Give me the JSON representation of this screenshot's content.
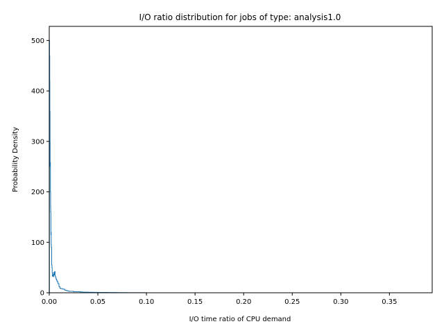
{
  "chart_data": {
    "type": "line",
    "title": "I/O ratio distribution for jobs of type: analysis1.0",
    "xlabel": "I/O time ratio of CPU demand",
    "ylabel": "Probability Density",
    "xlim": [
      0,
      0.394
    ],
    "ylim": [
      0,
      528
    ],
    "xticks": [
      0.0,
      0.05,
      0.1,
      0.15,
      0.2,
      0.25,
      0.3,
      0.35
    ],
    "xtick_labels": [
      "0.00",
      "0.05",
      "0.10",
      "0.15",
      "0.20",
      "0.25",
      "0.30",
      "0.35"
    ],
    "yticks": [
      0,
      100,
      200,
      300,
      400,
      500
    ],
    "ytick_labels": [
      "0",
      "100",
      "200",
      "300",
      "400",
      "500"
    ],
    "grid": false,
    "legend": "none",
    "series": [
      {
        "color": "#1f77b4",
        "x": [
          0.0,
          0.0002,
          0.0003,
          0.0005,
          0.0006,
          0.0008,
          0.0009,
          0.0011,
          0.0012,
          0.0014,
          0.0015,
          0.0017,
          0.0018,
          0.002,
          0.0022,
          0.0025,
          0.0028,
          0.003,
          0.0032,
          0.0035,
          0.004,
          0.0045,
          0.005,
          0.0055,
          0.006,
          0.0065,
          0.007,
          0.0075,
          0.008,
          0.009,
          0.01,
          0.011,
          0.012,
          0.013,
          0.014,
          0.016,
          0.018,
          0.02,
          0.022,
          0.025,
          0.028,
          0.032,
          0.035,
          0.04,
          0.045,
          0.05,
          0.055,
          0.06,
          0.065,
          0.07,
          0.08,
          0.1,
          0.15,
          0.2,
          0.25,
          0.3,
          0.35,
          0.375
        ],
        "y": [
          0,
          500,
          470,
          420,
          360,
          300,
          250,
          258,
          200,
          170,
          160,
          115,
          120,
          95,
          90,
          55,
          50,
          40,
          33,
          36,
          32,
          40,
          35,
          42,
          33,
          30,
          27,
          25,
          22,
          18,
          12,
          9,
          8,
          8,
          7,
          5,
          4,
          3,
          3,
          2,
          2,
          1.5,
          1.2,
          1,
          0.8,
          0.6,
          0.6,
          0.5,
          0.5,
          0.4,
          0.1,
          0.05,
          0.03,
          0.02,
          0.02,
          0.02,
          0.02,
          0.01
        ]
      }
    ]
  }
}
